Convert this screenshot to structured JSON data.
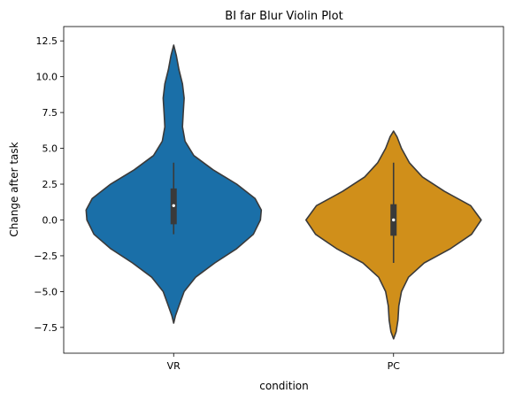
{
  "chart_data": {
    "type": "violin",
    "title": "BI far Blur Violin Plot",
    "xlabel": "condition",
    "ylabel": "Change after task",
    "categories": [
      "VR",
      "PC"
    ],
    "ylim": [
      -9.3,
      13.5
    ],
    "yticks": [
      -7.5,
      -5.0,
      -2.5,
      0.0,
      2.5,
      5.0,
      7.5,
      10.0,
      12.5
    ],
    "ytick_labels": [
      "−7.5",
      "−5.0",
      "−2.5",
      "0.0",
      "2.5",
      "5.0",
      "7.5",
      "10.0",
      "12.5"
    ],
    "grid": false,
    "series": [
      {
        "category": "VR",
        "color": "#1a6fa8",
        "min": -7.2,
        "max": 12.2,
        "whisker_low": -1.0,
        "whisker_high": 4.0,
        "q1": -0.3,
        "q3": 2.2,
        "median": 1.0,
        "density": [
          [
            -7.2,
            0.0
          ],
          [
            -6.7,
            0.02
          ],
          [
            -6.0,
            0.06
          ],
          [
            -5.0,
            0.12
          ],
          [
            -4.0,
            0.25
          ],
          [
            -3.0,
            0.47
          ],
          [
            -2.0,
            0.72
          ],
          [
            -1.0,
            0.91
          ],
          [
            0.0,
            0.99
          ],
          [
            0.7,
            1.0
          ],
          [
            1.5,
            0.93
          ],
          [
            2.5,
            0.72
          ],
          [
            3.5,
            0.45
          ],
          [
            4.5,
            0.23
          ],
          [
            5.5,
            0.13
          ],
          [
            6.5,
            0.1
          ],
          [
            7.5,
            0.11
          ],
          [
            8.5,
            0.12
          ],
          [
            9.5,
            0.1
          ],
          [
            10.5,
            0.06
          ],
          [
            11.5,
            0.03
          ],
          [
            12.2,
            0.0
          ]
        ]
      },
      {
        "category": "PC",
        "color": "#d08f1a",
        "min": -8.3,
        "max": 6.2,
        "whisker_low": -3.0,
        "whisker_high": 4.0,
        "q1": -1.1,
        "q3": 1.1,
        "median": 0.0,
        "density": [
          [
            -8.3,
            0.0
          ],
          [
            -7.8,
            0.03
          ],
          [
            -7.0,
            0.05
          ],
          [
            -6.0,
            0.06
          ],
          [
            -5.0,
            0.09
          ],
          [
            -4.0,
            0.17
          ],
          [
            -3.0,
            0.35
          ],
          [
            -2.0,
            0.65
          ],
          [
            -1.0,
            0.89
          ],
          [
            0.0,
            1.0
          ],
          [
            1.0,
            0.88
          ],
          [
            2.0,
            0.58
          ],
          [
            3.0,
            0.33
          ],
          [
            4.0,
            0.18
          ],
          [
            5.0,
            0.09
          ],
          [
            5.8,
            0.04
          ],
          [
            6.2,
            0.0
          ]
        ]
      }
    ]
  }
}
